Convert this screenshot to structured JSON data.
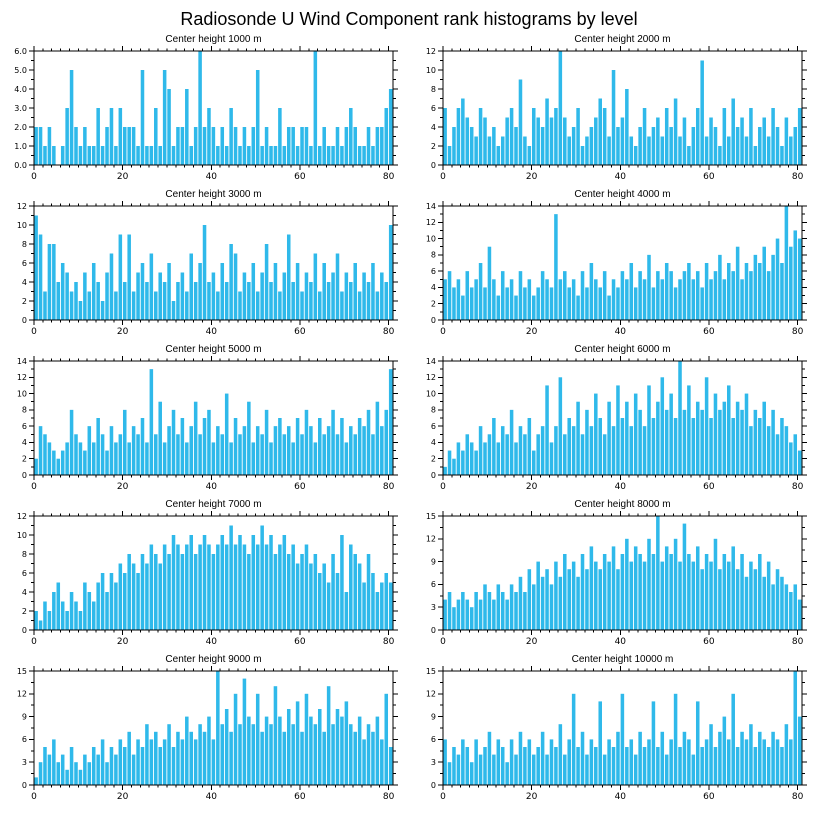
{
  "page_title": "Radiosonde U Wind Component rank histograms by level",
  "bar_color": "#2fb9ea",
  "axis_color": "#000000",
  "chart_data": [
    {
      "type": "bar",
      "title": "Center height 1000 m",
      "ylim": [
        0,
        6
      ],
      "ytick": 1,
      "ydecimals": 1,
      "xticks": [
        0,
        20,
        40,
        60,
        80
      ],
      "xminor": 2,
      "values": [
        2,
        2,
        1,
        2,
        1,
        0,
        1,
        3,
        5,
        2,
        1,
        2,
        1,
        1,
        3,
        1,
        2,
        3,
        1,
        3,
        2,
        2,
        2,
        1,
        5,
        1,
        1,
        3,
        1,
        5,
        4,
        1,
        2,
        2,
        4,
        1,
        2,
        6,
        2,
        3,
        2,
        1,
        2,
        1,
        3,
        2,
        1,
        2,
        1,
        2,
        5,
        1,
        2,
        1,
        1,
        3,
        1,
        2,
        2,
        1,
        2,
        2,
        1,
        6,
        1,
        2,
        1,
        1,
        2,
        1,
        2,
        3,
        2,
        1,
        1,
        2,
        1,
        2,
        2,
        3,
        4
      ]
    },
    {
      "type": "bar",
      "title": "Center height 2000 m",
      "ylim": [
        0,
        12
      ],
      "ytick": 2,
      "ydecimals": 0,
      "xticks": [
        0,
        20,
        40,
        60,
        80
      ],
      "xminor": 2,
      "values": [
        6,
        2,
        4,
        6,
        7,
        5,
        4,
        3,
        6,
        5,
        3,
        4,
        2,
        3,
        5,
        6,
        4,
        9,
        3,
        2,
        6,
        5,
        4,
        7,
        5,
        6,
        12,
        5,
        3,
        4,
        6,
        2,
        3,
        4,
        5,
        7,
        6,
        3,
        10,
        4,
        5,
        8,
        3,
        2,
        4,
        6,
        3,
        4,
        5,
        3,
        6,
        4,
        7,
        3,
        5,
        2,
        4,
        6,
        11,
        3,
        5,
        4,
        2,
        6,
        3,
        7,
        4,
        5,
        3,
        6,
        2,
        4,
        5,
        3,
        6,
        4,
        2,
        5,
        3,
        4,
        6
      ]
    },
    {
      "type": "bar",
      "title": "Center height 3000 m",
      "ylim": [
        0,
        12
      ],
      "ytick": 2,
      "ydecimals": 0,
      "xticks": [
        0,
        20,
        40,
        60,
        80
      ],
      "xminor": 2,
      "values": [
        11,
        9,
        3,
        8,
        8,
        4,
        6,
        5,
        3,
        4,
        2,
        5,
        3,
        6,
        4,
        2,
        5,
        7,
        3,
        9,
        4,
        9,
        3,
        5,
        6,
        4,
        7,
        3,
        5,
        4,
        6,
        2,
        4,
        5,
        3,
        7,
        4,
        6,
        10,
        4,
        5,
        3,
        6,
        4,
        8,
        7,
        3,
        5,
        4,
        6,
        3,
        5,
        8,
        4,
        6,
        3,
        5,
        9,
        4,
        6,
        3,
        5,
        4,
        7,
        3,
        6,
        4,
        5,
        7,
        3,
        5,
        4,
        6,
        3,
        5,
        4,
        6,
        3,
        5,
        4,
        10
      ]
    },
    {
      "type": "bar",
      "title": "Center height 4000 m",
      "ylim": [
        0,
        14
      ],
      "ytick": 2,
      "ydecimals": 0,
      "xticks": [
        0,
        20,
        40,
        60,
        80
      ],
      "xminor": 2,
      "values": [
        5,
        6,
        4,
        5,
        3,
        6,
        4,
        5,
        7,
        4,
        9,
        5,
        3,
        6,
        4,
        5,
        3,
        6,
        4,
        5,
        3,
        4,
        6,
        5,
        4,
        13,
        5,
        6,
        4,
        5,
        3,
        6,
        4,
        7,
        5,
        4,
        6,
        3,
        5,
        4,
        6,
        5,
        7,
        4,
        6,
        5,
        8,
        4,
        6,
        5,
        7,
        6,
        4,
        5,
        6,
        7,
        5,
        6,
        4,
        7,
        5,
        6,
        8,
        5,
        7,
        6,
        9,
        5,
        7,
        6,
        8,
        7,
        9,
        6,
        8,
        10,
        7,
        14,
        9,
        11,
        10
      ]
    },
    {
      "type": "bar",
      "title": "Center height 5000 m",
      "ylim": [
        0,
        14
      ],
      "ytick": 2,
      "ydecimals": 0,
      "xticks": [
        0,
        20,
        40,
        60,
        80
      ],
      "xminor": 2,
      "values": [
        2,
        6,
        5,
        4,
        3,
        2,
        3,
        4,
        8,
        5,
        4,
        3,
        6,
        4,
        7,
        5,
        3,
        6,
        4,
        5,
        8,
        4,
        6,
        5,
        7,
        4,
        13,
        5,
        9,
        4,
        6,
        8,
        5,
        7,
        4,
        6,
        9,
        5,
        7,
        8,
        4,
        6,
        5,
        10,
        4,
        7,
        5,
        6,
        9,
        4,
        6,
        5,
        8,
        4,
        6,
        7,
        5,
        6,
        4,
        7,
        5,
        8,
        6,
        4,
        7,
        5,
        6,
        8,
        5,
        7,
        4,
        6,
        5,
        7,
        6,
        8,
        5,
        9,
        6,
        8,
        13
      ]
    },
    {
      "type": "bar",
      "title": "Center height 6000 m",
      "ylim": [
        0,
        14
      ],
      "ytick": 2,
      "ydecimals": 0,
      "xticks": [
        0,
        20,
        40,
        60,
        80
      ],
      "xminor": 2,
      "values": [
        1,
        3,
        2,
        4,
        3,
        5,
        4,
        3,
        6,
        4,
        5,
        7,
        4,
        6,
        5,
        8,
        4,
        6,
        5,
        7,
        3,
        5,
        6,
        11,
        4,
        6,
        12,
        5,
        7,
        6,
        9,
        5,
        8,
        6,
        10,
        7,
        5,
        9,
        6,
        11,
        7,
        9,
        6,
        10,
        8,
        6,
        11,
        7,
        9,
        12,
        8,
        10,
        7,
        14,
        8,
        11,
        7,
        9,
        8,
        12,
        7,
        10,
        8,
        9,
        11,
        7,
        9,
        8,
        10,
        6,
        8,
        7,
        9,
        6,
        8,
        5,
        7,
        6,
        4,
        5,
        3
      ]
    },
    {
      "type": "bar",
      "title": "Center height 7000 m",
      "ylim": [
        0,
        12
      ],
      "ytick": 2,
      "ydecimals": 0,
      "xticks": [
        0,
        20,
        40,
        60,
        80
      ],
      "xminor": 2,
      "values": [
        2,
        1,
        3,
        2,
        4,
        5,
        3,
        2,
        4,
        3,
        2,
        5,
        4,
        3,
        5,
        6,
        4,
        6,
        5,
        7,
        6,
        8,
        7,
        6,
        8,
        7,
        9,
        8,
        7,
        9,
        8,
        10,
        9,
        8,
        9,
        10,
        8,
        9,
        10,
        9,
        8,
        9,
        10,
        9,
        11,
        9,
        10,
        9,
        8,
        10,
        9,
        11,
        9,
        10,
        8,
        9,
        10,
        8,
        9,
        7,
        8,
        9,
        7,
        8,
        6,
        7,
        5,
        8,
        6,
        10,
        4,
        9,
        8,
        7,
        5,
        8,
        6,
        4,
        5,
        6,
        5
      ]
    },
    {
      "type": "bar",
      "title": "Center height 8000 m",
      "ylim": [
        0,
        15
      ],
      "ytick": 3,
      "ydecimals": 0,
      "xticks": [
        0,
        20,
        40,
        60,
        80
      ],
      "xminor": 2,
      "values": [
        4,
        5,
        3,
        4,
        5,
        4,
        3,
        5,
        4,
        6,
        5,
        4,
        6,
        5,
        4,
        6,
        5,
        7,
        5,
        8,
        6,
        9,
        7,
        8,
        6,
        9,
        7,
        10,
        8,
        9,
        7,
        10,
        8,
        11,
        9,
        8,
        10,
        9,
        11,
        8,
        10,
        12,
        9,
        11,
        10,
        9,
        12,
        10,
        15,
        9,
        11,
        10,
        12,
        9,
        14,
        10,
        9,
        11,
        8,
        10,
        9,
        12,
        8,
        10,
        9,
        11,
        8,
        10,
        7,
        9,
        8,
        10,
        7,
        9,
        6,
        8,
        7,
        6,
        5,
        6,
        4
      ]
    },
    {
      "type": "bar",
      "title": "Center height 9000 m",
      "ylim": [
        0,
        15
      ],
      "ytick": 3,
      "ydecimals": 0,
      "xticks": [
        0,
        20,
        40,
        60,
        80
      ],
      "xminor": 2,
      "values": [
        1,
        3,
        5,
        4,
        6,
        3,
        4,
        2,
        5,
        3,
        2,
        4,
        3,
        5,
        4,
        6,
        3,
        5,
        4,
        6,
        5,
        7,
        4,
        6,
        5,
        8,
        6,
        7,
        5,
        6,
        8,
        5,
        7,
        6,
        9,
        7,
        6,
        8,
        7,
        9,
        6,
        15,
        8,
        10,
        7,
        12,
        8,
        14,
        9,
        8,
        12,
        7,
        9,
        8,
        13,
        9,
        7,
        10,
        8,
        11,
        7,
        12,
        9,
        8,
        10,
        7,
        13,
        8,
        10,
        9,
        11,
        8,
        7,
        9,
        6,
        8,
        7,
        9,
        6,
        12,
        5
      ]
    },
    {
      "type": "bar",
      "title": "Center height 10000 m",
      "ylim": [
        0,
        15
      ],
      "ytick": 3,
      "ydecimals": 0,
      "xticks": [
        0,
        20,
        40,
        60,
        80
      ],
      "xminor": 2,
      "values": [
        6,
        3,
        5,
        4,
        6,
        5,
        3,
        6,
        4,
        5,
        7,
        4,
        6,
        5,
        3,
        6,
        4,
        7,
        5,
        6,
        4,
        5,
        7,
        4,
        6,
        5,
        8,
        4,
        6,
        12,
        5,
        7,
        4,
        6,
        5,
        11,
        4,
        6,
        5,
        7,
        12,
        5,
        6,
        4,
        7,
        5,
        6,
        11,
        5,
        7,
        4,
        6,
        12,
        5,
        7,
        6,
        4,
        11,
        5,
        6,
        8,
        5,
        7,
        9,
        6,
        12,
        5,
        7,
        6,
        8,
        5,
        7,
        6,
        5,
        7,
        6,
        5,
        8,
        6,
        15,
        9
      ]
    }
  ]
}
